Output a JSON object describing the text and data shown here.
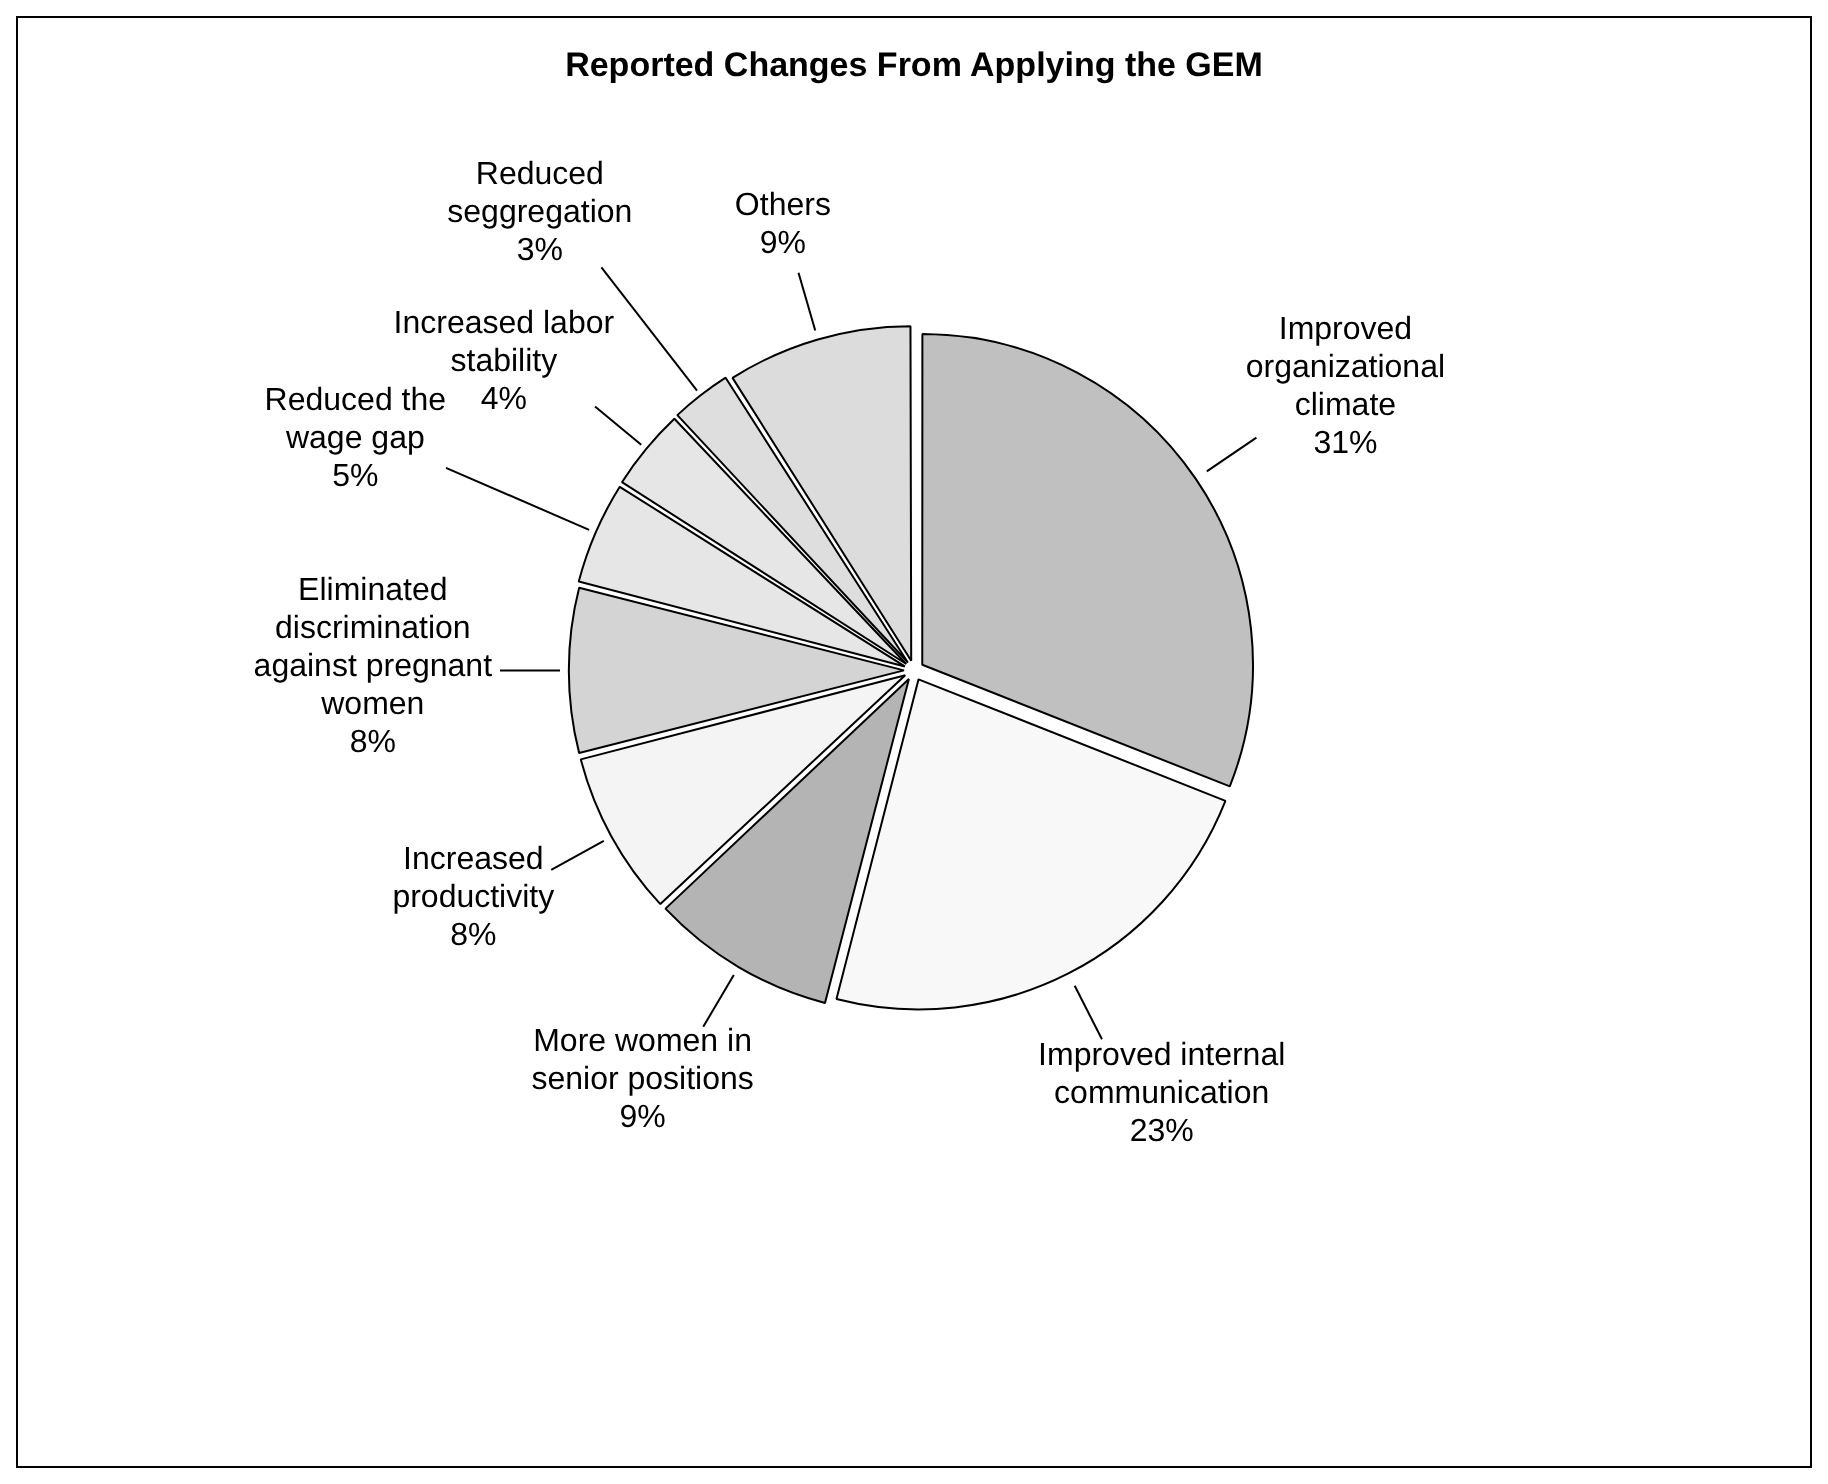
{
  "chart_data": {
    "type": "pie",
    "title": "Reported Changes From Applying the GEM",
    "categories": [
      "Improved organizational climate",
      "Improved internal communication",
      "More women in senior positions",
      "Increased productivity",
      "Eliminated discrimination against pregnant women",
      "Reduced the wage gap",
      "Increased labor stability",
      "Reduced seggregation",
      "Others"
    ],
    "values": [
      31,
      23,
      9,
      8,
      8,
      5,
      4,
      3,
      9
    ],
    "value_labels": [
      "31%",
      "23%",
      "9%",
      "8%",
      "8%",
      "5%",
      "4%",
      "3%",
      "9%"
    ],
    "colors": [
      "#c0c0c0",
      "#f8f8f8",
      "#b4b4b4",
      "#f4f4f4",
      "#d4d4d4",
      "#e6e6e6",
      "#e6e6e6",
      "#dedede",
      "#dcdcdc"
    ],
    "legend": false
  }
}
